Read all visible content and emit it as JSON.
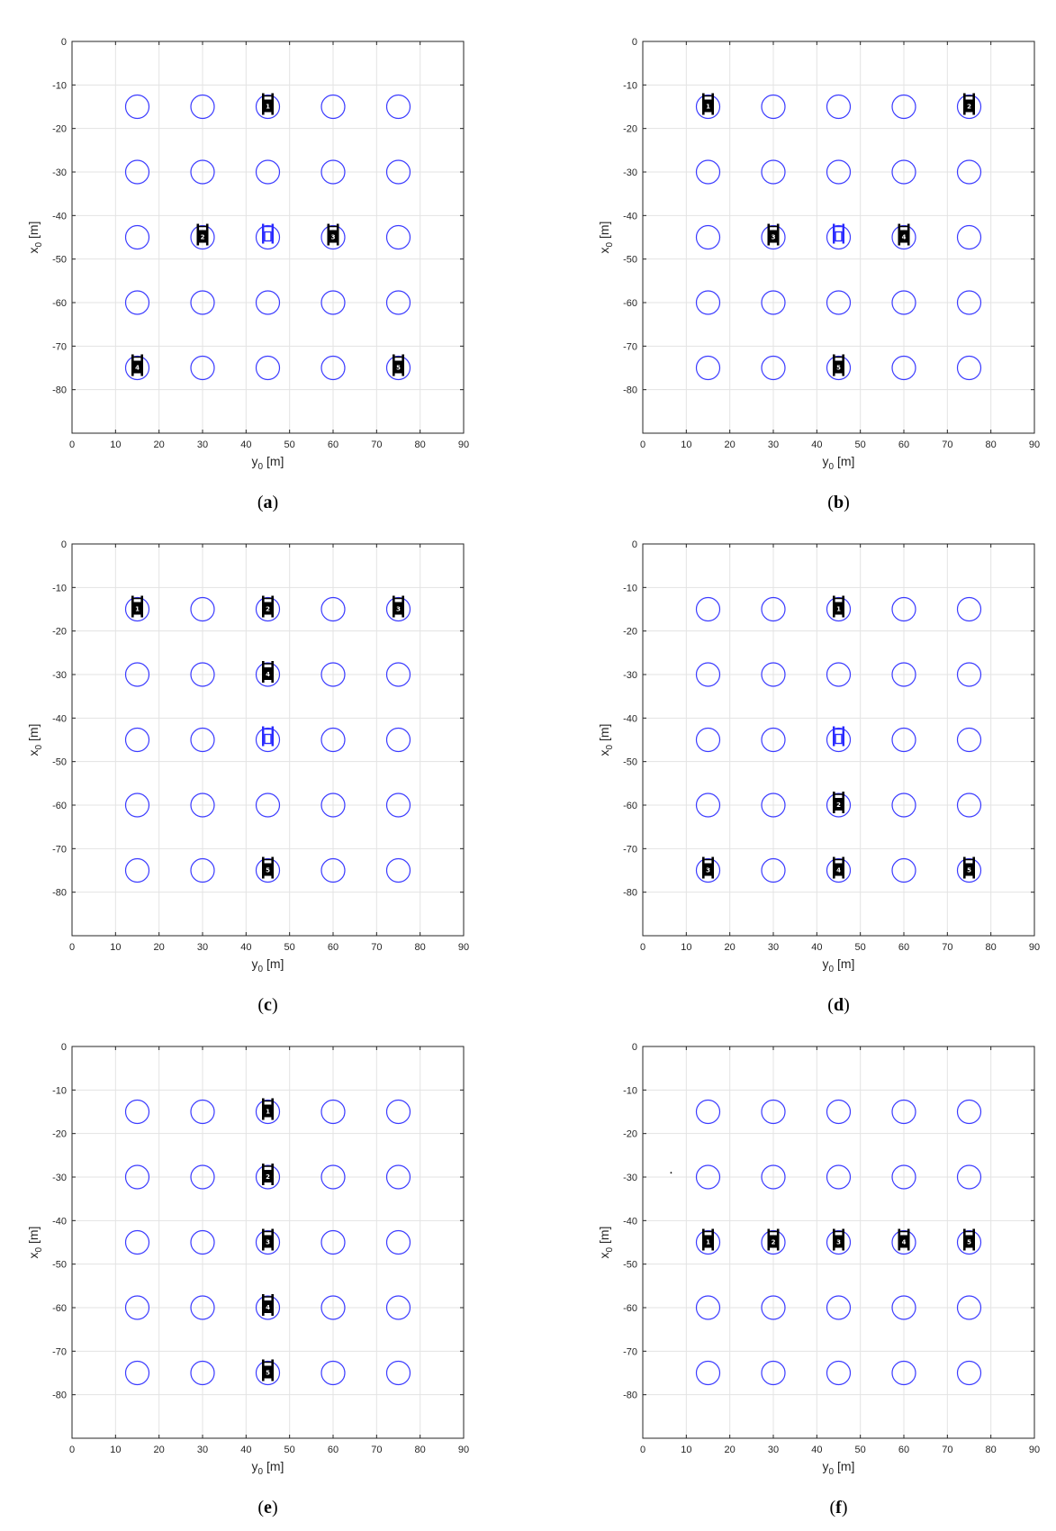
{
  "colors": {
    "circle": "#3b3bff",
    "vehicle": "#000000",
    "center_vehicle": "#2a2aff",
    "grid": "#e3e3e3",
    "axes": "#262626"
  },
  "chart_data": [
    {
      "type": "scatter",
      "caption": "(a)",
      "caption_letter": "a",
      "xlabel_main": "y",
      "xlabel_sub": "0",
      "xlabel_unit": "[m]",
      "ylabel_main": "x",
      "ylabel_sub": "0",
      "ylabel_unit": "[m]",
      "xlim": [
        0,
        90
      ],
      "ylim": [
        -90,
        0
      ],
      "xticks": [
        "0",
        "10",
        "20",
        "30",
        "40",
        "50",
        "60",
        "70",
        "80",
        "90"
      ],
      "yticks": [
        "0",
        "-10",
        "-20",
        "-30",
        "-40",
        "-50",
        "-60",
        "-70",
        "-80"
      ],
      "grid": true,
      "circles": [
        [
          15,
          -15
        ],
        [
          30,
          -15
        ],
        [
          45,
          -15
        ],
        [
          60,
          -15
        ],
        [
          75,
          -15
        ],
        [
          15,
          -30
        ],
        [
          30,
          -30
        ],
        [
          45,
          -30
        ],
        [
          60,
          -30
        ],
        [
          75,
          -30
        ],
        [
          15,
          -45
        ],
        [
          30,
          -45
        ],
        [
          45,
          -45
        ],
        [
          60,
          -45
        ],
        [
          75,
          -45
        ],
        [
          15,
          -60
        ],
        [
          30,
          -60
        ],
        [
          45,
          -60
        ],
        [
          60,
          -60
        ],
        [
          75,
          -60
        ],
        [
          15,
          -75
        ],
        [
          30,
          -75
        ],
        [
          45,
          -75
        ],
        [
          60,
          -75
        ],
        [
          75,
          -75
        ]
      ],
      "vehicles": [
        {
          "y": 45,
          "x": -15,
          "label": "1"
        },
        {
          "y": 30,
          "x": -45,
          "label": "2"
        },
        {
          "y": 60,
          "x": -45,
          "label": "3"
        },
        {
          "y": 15,
          "x": -75,
          "label": "4"
        },
        {
          "y": 75,
          "x": -75,
          "label": "5"
        }
      ],
      "center_vehicle": {
        "y": 45,
        "x": -45
      },
      "marks": []
    },
    {
      "type": "scatter",
      "caption": "(b)",
      "caption_letter": "b",
      "xlabel_main": "y",
      "xlabel_sub": "0",
      "xlabel_unit": "[m]",
      "ylabel_main": "x",
      "ylabel_sub": "0",
      "ylabel_unit": "[m]",
      "xlim": [
        0,
        90
      ],
      "ylim": [
        -90,
        0
      ],
      "xticks": [
        "0",
        "10",
        "20",
        "30",
        "40",
        "50",
        "60",
        "70",
        "80",
        "90"
      ],
      "yticks": [
        "0",
        "-10",
        "-20",
        "-30",
        "-40",
        "-50",
        "-60",
        "-70",
        "-80"
      ],
      "grid": true,
      "circles": [
        [
          15,
          -15
        ],
        [
          30,
          -15
        ],
        [
          45,
          -15
        ],
        [
          60,
          -15
        ],
        [
          75,
          -15
        ],
        [
          15,
          -30
        ],
        [
          30,
          -30
        ],
        [
          45,
          -30
        ],
        [
          60,
          -30
        ],
        [
          75,
          -30
        ],
        [
          15,
          -45
        ],
        [
          30,
          -45
        ],
        [
          45,
          -45
        ],
        [
          60,
          -45
        ],
        [
          75,
          -45
        ],
        [
          15,
          -60
        ],
        [
          30,
          -60
        ],
        [
          45,
          -60
        ],
        [
          60,
          -60
        ],
        [
          75,
          -60
        ],
        [
          15,
          -75
        ],
        [
          30,
          -75
        ],
        [
          45,
          -75
        ],
        [
          60,
          -75
        ],
        [
          75,
          -75
        ]
      ],
      "vehicles": [
        {
          "y": 15,
          "x": -15,
          "label": "1"
        },
        {
          "y": 75,
          "x": -15,
          "label": "2"
        },
        {
          "y": 30,
          "x": -45,
          "label": "3"
        },
        {
          "y": 60,
          "x": -45,
          "label": "4"
        },
        {
          "y": 45,
          "x": -75,
          "label": "5"
        }
      ],
      "center_vehicle": {
        "y": 45,
        "x": -45
      },
      "marks": []
    },
    {
      "type": "scatter",
      "caption": "(c)",
      "caption_letter": "c",
      "xlabel_main": "y",
      "xlabel_sub": "0",
      "xlabel_unit": "[m]",
      "ylabel_main": "x",
      "ylabel_sub": "0",
      "ylabel_unit": "[m]",
      "xlim": [
        0,
        90
      ],
      "ylim": [
        -90,
        0
      ],
      "xticks": [
        "0",
        "10",
        "20",
        "30",
        "40",
        "50",
        "60",
        "70",
        "80",
        "90"
      ],
      "yticks": [
        "0",
        "-10",
        "-20",
        "-30",
        "-40",
        "-50",
        "-60",
        "-70",
        "-80"
      ],
      "grid": true,
      "circles": [
        [
          15,
          -15
        ],
        [
          30,
          -15
        ],
        [
          45,
          -15
        ],
        [
          60,
          -15
        ],
        [
          75,
          -15
        ],
        [
          15,
          -30
        ],
        [
          30,
          -30
        ],
        [
          45,
          -30
        ],
        [
          60,
          -30
        ],
        [
          75,
          -30
        ],
        [
          15,
          -45
        ],
        [
          30,
          -45
        ],
        [
          45,
          -45
        ],
        [
          60,
          -45
        ],
        [
          75,
          -45
        ],
        [
          15,
          -60
        ],
        [
          30,
          -60
        ],
        [
          45,
          -60
        ],
        [
          60,
          -60
        ],
        [
          75,
          -60
        ],
        [
          15,
          -75
        ],
        [
          30,
          -75
        ],
        [
          45,
          -75
        ],
        [
          60,
          -75
        ],
        [
          75,
          -75
        ]
      ],
      "vehicles": [
        {
          "y": 15,
          "x": -15,
          "label": "1"
        },
        {
          "y": 45,
          "x": -15,
          "label": "2"
        },
        {
          "y": 75,
          "x": -15,
          "label": "3"
        },
        {
          "y": 45,
          "x": -30,
          "label": "4"
        },
        {
          "y": 45,
          "x": -75,
          "label": "5"
        }
      ],
      "center_vehicle": {
        "y": 45,
        "x": -45
      },
      "marks": []
    },
    {
      "type": "scatter",
      "caption": "(d)",
      "caption_letter": "d",
      "xlabel_main": "y",
      "xlabel_sub": "0",
      "xlabel_unit": "[m]",
      "ylabel_main": "x",
      "ylabel_sub": "0",
      "ylabel_unit": "[m]",
      "xlim": [
        0,
        90
      ],
      "ylim": [
        -90,
        0
      ],
      "xticks": [
        "0",
        "10",
        "20",
        "30",
        "40",
        "50",
        "60",
        "70",
        "80",
        "90"
      ],
      "yticks": [
        "0",
        "-10",
        "-20",
        "-30",
        "-40",
        "-50",
        "-60",
        "-70",
        "-80"
      ],
      "grid": true,
      "circles": [
        [
          15,
          -15
        ],
        [
          30,
          -15
        ],
        [
          45,
          -15
        ],
        [
          60,
          -15
        ],
        [
          75,
          -15
        ],
        [
          15,
          -30
        ],
        [
          30,
          -30
        ],
        [
          45,
          -30
        ],
        [
          60,
          -30
        ],
        [
          75,
          -30
        ],
        [
          15,
          -45
        ],
        [
          30,
          -45
        ],
        [
          45,
          -45
        ],
        [
          60,
          -45
        ],
        [
          75,
          -45
        ],
        [
          15,
          -60
        ],
        [
          30,
          -60
        ],
        [
          45,
          -60
        ],
        [
          60,
          -60
        ],
        [
          75,
          -60
        ],
        [
          15,
          -75
        ],
        [
          30,
          -75
        ],
        [
          45,
          -75
        ],
        [
          60,
          -75
        ],
        [
          75,
          -75
        ]
      ],
      "vehicles": [
        {
          "y": 45,
          "x": -15,
          "label": "1"
        },
        {
          "y": 45,
          "x": -60,
          "label": "2"
        },
        {
          "y": 15,
          "x": -75,
          "label": "3"
        },
        {
          "y": 45,
          "x": -75,
          "label": "4"
        },
        {
          "y": 75,
          "x": -75,
          "label": "5"
        }
      ],
      "center_vehicle": {
        "y": 45,
        "x": -45
      },
      "marks": []
    },
    {
      "type": "scatter",
      "caption": "(e)",
      "caption_letter": "e",
      "xlabel_main": "y",
      "xlabel_sub": "0",
      "xlabel_unit": "[m]",
      "ylabel_main": "x",
      "ylabel_sub": "0",
      "ylabel_unit": "[m]",
      "xlim": [
        0,
        90
      ],
      "ylim": [
        -90,
        0
      ],
      "xticks": [
        "0",
        "10",
        "20",
        "30",
        "40",
        "50",
        "60",
        "70",
        "80",
        "90"
      ],
      "yticks": [
        "0",
        "-10",
        "-20",
        "-30",
        "-40",
        "-50",
        "-60",
        "-70",
        "-80"
      ],
      "grid": true,
      "circles": [
        [
          15,
          -15
        ],
        [
          30,
          -15
        ],
        [
          45,
          -15
        ],
        [
          60,
          -15
        ],
        [
          75,
          -15
        ],
        [
          15,
          -30
        ],
        [
          30,
          -30
        ],
        [
          45,
          -30
        ],
        [
          60,
          -30
        ],
        [
          75,
          -30
        ],
        [
          15,
          -45
        ],
        [
          30,
          -45
        ],
        [
          45,
          -45
        ],
        [
          60,
          -45
        ],
        [
          75,
          -45
        ],
        [
          15,
          -60
        ],
        [
          30,
          -60
        ],
        [
          45,
          -60
        ],
        [
          60,
          -60
        ],
        [
          75,
          -60
        ],
        [
          15,
          -75
        ],
        [
          30,
          -75
        ],
        [
          45,
          -75
        ],
        [
          60,
          -75
        ],
        [
          75,
          -75
        ]
      ],
      "vehicles": [
        {
          "y": 45,
          "x": -15,
          "label": "1"
        },
        {
          "y": 45,
          "x": -30,
          "label": "2"
        },
        {
          "y": 45,
          "x": -45,
          "label": "3"
        },
        {
          "y": 45,
          "x": -60,
          "label": "4"
        },
        {
          "y": 45,
          "x": -75,
          "label": "5"
        }
      ],
      "center_vehicle": null,
      "marks": []
    },
    {
      "type": "scatter",
      "caption": "(f)",
      "caption_letter": "f",
      "xlabel_main": "y",
      "xlabel_sub": "0",
      "xlabel_unit": "[m]",
      "ylabel_main": "x",
      "ylabel_sub": "0",
      "ylabel_unit": "[m]",
      "xlim": [
        0,
        90
      ],
      "ylim": [
        -90,
        0
      ],
      "xticks": [
        "0",
        "10",
        "20",
        "30",
        "40",
        "50",
        "60",
        "70",
        "80",
        "90"
      ],
      "yticks": [
        "0",
        "-10",
        "-20",
        "-30",
        "-40",
        "-50",
        "-60",
        "-70",
        "-80"
      ],
      "grid": true,
      "circles": [
        [
          15,
          -15
        ],
        [
          30,
          -15
        ],
        [
          45,
          -15
        ],
        [
          60,
          -15
        ],
        [
          75,
          -15
        ],
        [
          15,
          -30
        ],
        [
          30,
          -30
        ],
        [
          45,
          -30
        ],
        [
          60,
          -30
        ],
        [
          75,
          -30
        ],
        [
          15,
          -45
        ],
        [
          30,
          -45
        ],
        [
          45,
          -45
        ],
        [
          60,
          -45
        ],
        [
          75,
          -45
        ],
        [
          15,
          -60
        ],
        [
          30,
          -60
        ],
        [
          45,
          -60
        ],
        [
          60,
          -60
        ],
        [
          75,
          -60
        ],
        [
          15,
          -75
        ],
        [
          30,
          -75
        ],
        [
          45,
          -75
        ],
        [
          60,
          -75
        ],
        [
          75,
          -75
        ]
      ],
      "vehicles": [
        {
          "y": 15,
          "x": -45,
          "label": "1"
        },
        {
          "y": 30,
          "x": -45,
          "label": "2"
        },
        {
          "y": 45,
          "x": -45,
          "label": "3"
        },
        {
          "y": 60,
          "x": -45,
          "label": "4"
        },
        {
          "y": 75,
          "x": -45,
          "label": "5"
        }
      ],
      "center_vehicle": null,
      "marks": [
        [
          6.5,
          -29
        ]
      ]
    }
  ]
}
